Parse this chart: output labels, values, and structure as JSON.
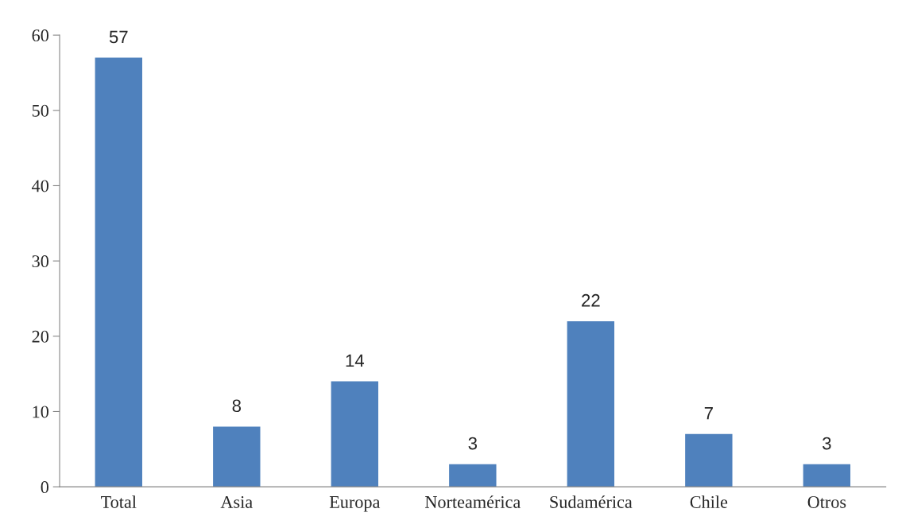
{
  "chart_data": {
    "type": "bar",
    "categories": [
      "Total",
      "Asia",
      "Europa",
      "Norteamérica",
      "Sudamérica",
      "Chile",
      "Otros"
    ],
    "values": [
      57,
      8,
      14,
      3,
      22,
      7,
      3
    ],
    "color": "#4f81bd",
    "ylim": [
      0,
      60
    ],
    "yticks": [
      0,
      10,
      20,
      30,
      40,
      50,
      60
    ],
    "data_labels": true,
    "grid": false,
    "legend": false
  }
}
